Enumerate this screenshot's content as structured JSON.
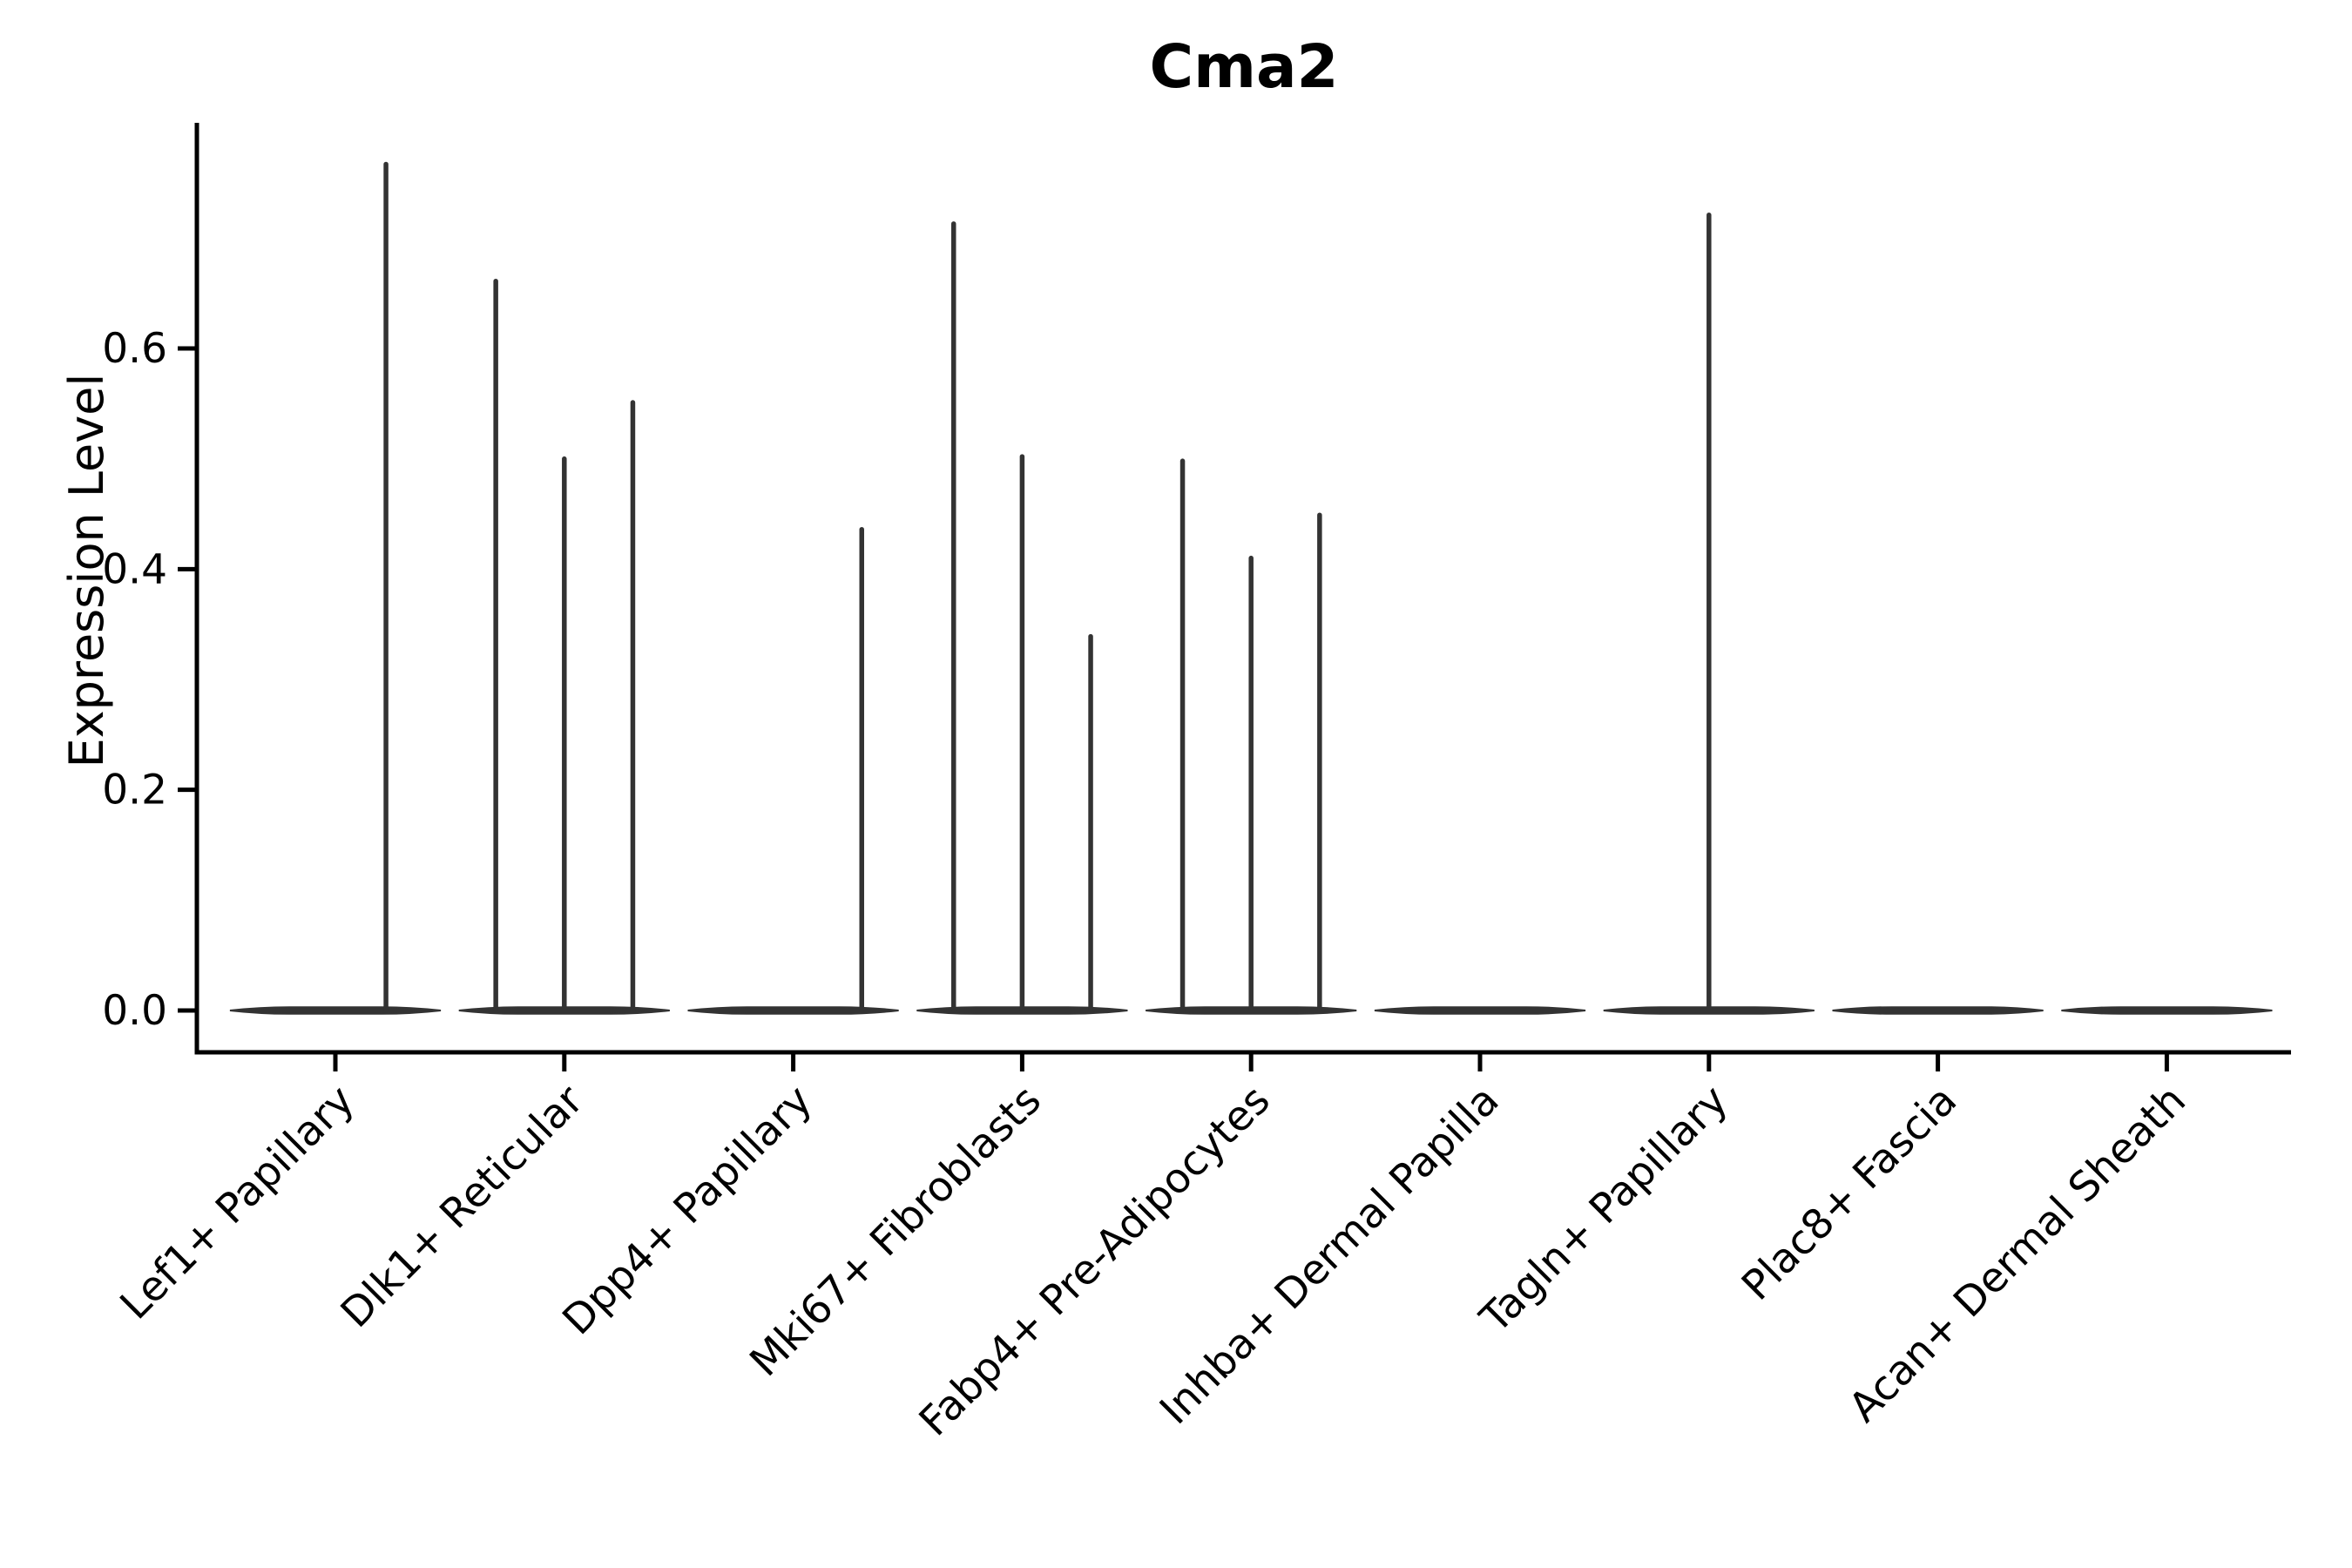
{
  "title": "Cma2",
  "colors": {
    "background": "#ffffff",
    "axis_ink": "#000000",
    "violin_ink": "#333333"
  },
  "chart_data": {
    "type": "violin",
    "title": "Cma2",
    "xlabel": "",
    "ylabel": "Expression Level",
    "ylim": [
      -0.04,
      0.8
    ],
    "yticks": [
      0.0,
      0.2,
      0.4,
      0.6
    ],
    "ytick_labels": [
      "0.0",
      "0.2",
      "0.4",
      "0.6"
    ],
    "grid": false,
    "legend": "none",
    "description": "Violin plot of Cma2 expression per fibroblast cluster; each violin is a flat band at 0 (nearly all cells zero) with thin needle spikes up to the maximum expression of rare positive cells.",
    "categories": [
      "Lef1+ Papillary",
      "Dlk1+ Reticular",
      "Dpp4+ Papillary",
      "Mki67+ Fibroblasts",
      "Fabp4+ Pre-Adipocytes",
      "Inhba+ Dermal Papilla",
      "Tagln+ Papillary",
      "Plac8+ Fascia",
      "Acan+ Dermal Sheath"
    ],
    "series": [
      {
        "category": "Lef1+ Papillary",
        "baseline_value": 0.0,
        "spikes": [
          {
            "offset_frac": 0.24,
            "value": 0.767
          }
        ]
      },
      {
        "category": "Dlk1+ Reticular",
        "baseline_value": 0.0,
        "spikes": [
          {
            "offset_frac": -0.325,
            "value": 0.661
          },
          {
            "offset_frac": 0.0,
            "value": 0.5
          },
          {
            "offset_frac": 0.325,
            "value": 0.551
          }
        ]
      },
      {
        "category": "Dpp4+ Papillary",
        "baseline_value": 0.0,
        "spikes": [
          {
            "offset_frac": 0.325,
            "value": 0.436
          }
        ]
      },
      {
        "category": "Mki67+ Fibroblasts",
        "baseline_value": 0.0,
        "spikes": [
          {
            "offset_frac": -0.325,
            "value": 0.713
          },
          {
            "offset_frac": 0.0,
            "value": 0.502
          },
          {
            "offset_frac": 0.325,
            "value": 0.339
          }
        ]
      },
      {
        "category": "Fabp4+ Pre-Adipocytes",
        "baseline_value": 0.0,
        "spikes": [
          {
            "offset_frac": -0.325,
            "value": 0.498
          },
          {
            "offset_frac": 0.0,
            "value": 0.41
          },
          {
            "offset_frac": 0.325,
            "value": 0.449
          }
        ]
      },
      {
        "category": "Inhba+ Dermal Papilla",
        "baseline_value": 0.0,
        "spikes": []
      },
      {
        "category": "Tagln+ Papillary",
        "baseline_value": 0.0,
        "spikes": [
          {
            "offset_frac": 0.0,
            "value": 0.721
          }
        ]
      },
      {
        "category": "Plac8+ Fascia",
        "baseline_value": 0.0,
        "spikes": []
      },
      {
        "category": "Acan+ Dermal Sheath",
        "baseline_value": 0.0,
        "spikes": []
      }
    ]
  }
}
